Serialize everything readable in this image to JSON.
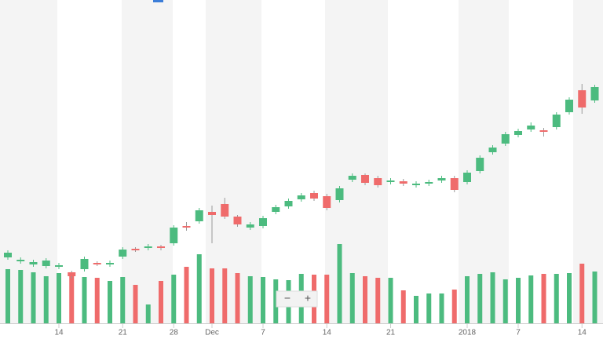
{
  "chart_data": {
    "type": "candlestick",
    "categories": [
      null,
      null,
      null,
      null,
      "14",
      null,
      null,
      null,
      null,
      "21",
      null,
      null,
      null,
      "28",
      null,
      null,
      "Dec",
      null,
      null,
      null,
      "7",
      null,
      null,
      null,
      null,
      "14",
      null,
      null,
      null,
      null,
      "21",
      null,
      null,
      null,
      null,
      null,
      "2018",
      null,
      null,
      null,
      "7",
      null,
      null,
      null,
      null,
      "14",
      null
    ],
    "open": [
      72,
      67,
      63,
      61,
      60,
      53,
      57,
      65,
      63,
      73,
      83,
      84,
      86,
      90,
      112,
      118,
      130,
      140,
      124,
      110,
      112,
      130,
      137,
      146,
      154,
      150,
      145,
      171,
      177,
      173,
      168,
      169,
      164,
      166,
      170,
      173,
      168,
      182,
      206,
      217,
      228,
      235,
      234,
      238,
      257,
      285,
      272
    ],
    "close": [
      78,
      69,
      66,
      68,
      62,
      48,
      70,
      63,
      65,
      82,
      81,
      86,
      84,
      110,
      110,
      132,
      126,
      124,
      114,
      114,
      122,
      136,
      144,
      151,
      147,
      135,
      160,
      176,
      167,
      164,
      170,
      166,
      166,
      168,
      173,
      158,
      180,
      199,
      212,
      229,
      233,
      240,
      232,
      254,
      273,
      263,
      289
    ],
    "high": [
      81,
      72,
      69,
      71,
      65,
      55,
      73,
      67,
      68,
      85,
      85,
      89,
      88,
      113,
      117,
      135,
      138,
      148,
      126,
      117,
      125,
      139,
      147,
      154,
      157,
      153,
      163,
      179,
      179,
      176,
      173,
      172,
      169,
      171,
      176,
      176,
      183,
      202,
      215,
      232,
      236,
      244,
      237,
      257,
      276,
      293,
      292
    ],
    "low": [
      69,
      64,
      60,
      58,
      57,
      45,
      54,
      61,
      60,
      70,
      79,
      81,
      81,
      87,
      106,
      115,
      90,
      121,
      111,
      107,
      109,
      127,
      134,
      143,
      144,
      132,
      142,
      168,
      164,
      161,
      165,
      163,
      161,
      163,
      167,
      155,
      165,
      179,
      203,
      214,
      225,
      232,
      226,
      235,
      254,
      255,
      269
    ],
    "volume": [
      69,
      68,
      65,
      60,
      64,
      64,
      59,
      58,
      54,
      59,
      49,
      24,
      54,
      62,
      72,
      88,
      70,
      70,
      64,
      60,
      59,
      56,
      55,
      63,
      62,
      62,
      101,
      64,
      60,
      58,
      58,
      42,
      35,
      38,
      38,
      43,
      60,
      63,
      65,
      56,
      58,
      61,
      63,
      63,
      64,
      76,
      66
    ],
    "up_color": "#4cbb7f",
    "down_color": "#ef6b6b",
    "ylim": [
      0,
      400
    ],
    "volume_ylim": [
      0,
      140
    ],
    "zoom": {
      "minus": "−",
      "plus": "+"
    }
  }
}
